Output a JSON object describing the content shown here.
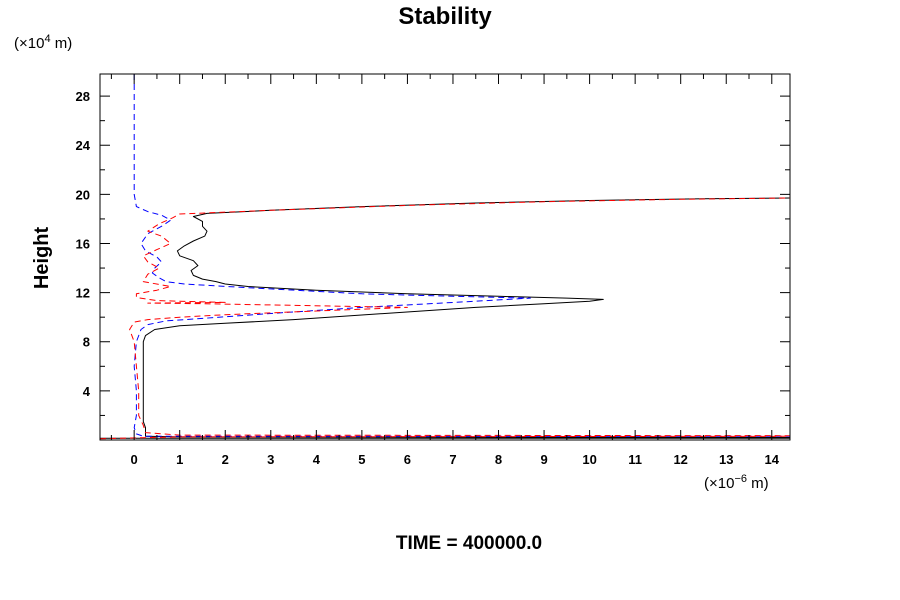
{
  "chart_data": {
    "type": "line",
    "title": "Stability",
    "ylabel": "Height",
    "xunits": {
      "prefix": "(×10",
      "exp": "−6",
      "suffix": " m)"
    },
    "yunits": {
      "prefix": "(×10",
      "exp": "4",
      "suffix": " m)"
    },
    "footer": "TIME = 400000.0",
    "xlim": [
      -0.75,
      14.4
    ],
    "ylim": [
      0,
      29.8
    ],
    "xticks": [
      "0",
      "1",
      "2",
      "3",
      "4",
      "5",
      "6",
      "7",
      "8",
      "9",
      "10",
      "11",
      "12",
      "13",
      "14"
    ],
    "yticks": [
      "4",
      "8",
      "12",
      "16",
      "20",
      "24",
      "28"
    ],
    "series": [
      {
        "color": "#000000",
        "dash": "",
        "points": [
          [
            -0.8,
            0.15
          ],
          [
            14.4,
            0.15
          ],
          [
            14.4,
            0.2
          ],
          [
            1.0,
            0.25
          ],
          [
            0.25,
            0.3
          ],
          [
            0.25,
            1.0
          ],
          [
            0.2,
            1.5
          ],
          [
            0.2,
            4.0
          ],
          [
            0.2,
            8.0
          ],
          [
            0.25,
            8.5
          ],
          [
            0.45,
            9.0
          ],
          [
            1.0,
            9.3
          ],
          [
            2.0,
            9.5
          ],
          [
            3.5,
            9.8
          ],
          [
            5.5,
            10.3
          ],
          [
            7.5,
            10.8
          ],
          [
            9.0,
            11.1
          ],
          [
            10.0,
            11.3
          ],
          [
            10.3,
            11.45
          ],
          [
            9.5,
            11.55
          ],
          [
            8.0,
            11.7
          ],
          [
            6.0,
            11.9
          ],
          [
            4.0,
            12.2
          ],
          [
            2.5,
            12.5
          ],
          [
            2.0,
            12.7
          ],
          [
            1.8,
            12.9
          ],
          [
            1.5,
            13.1
          ],
          [
            1.3,
            13.4
          ],
          [
            1.25,
            13.8
          ],
          [
            1.4,
            14.2
          ],
          [
            1.3,
            14.6
          ],
          [
            1.0,
            15.0
          ],
          [
            0.95,
            15.4
          ],
          [
            1.1,
            15.8
          ],
          [
            1.3,
            16.2
          ],
          [
            1.55,
            16.6
          ],
          [
            1.6,
            17.0
          ],
          [
            1.5,
            17.4
          ],
          [
            1.5,
            17.8
          ],
          [
            1.3,
            18.2
          ],
          [
            1.6,
            18.45
          ],
          [
            3.0,
            18.7
          ],
          [
            5.0,
            19.0
          ],
          [
            7.5,
            19.3
          ],
          [
            10.0,
            19.5
          ],
          [
            12.5,
            19.65
          ],
          [
            14.4,
            19.7
          ]
        ]
      },
      {
        "color": "#0000ff",
        "dash": "6,4",
        "points": [
          [
            0.0,
            29.8
          ],
          [
            0.0,
            28.0
          ],
          [
            0.0,
            24.0
          ],
          [
            0.0,
            20.0
          ],
          [
            0.05,
            19.0
          ],
          [
            0.3,
            18.6
          ],
          [
            0.6,
            18.3
          ],
          [
            0.8,
            17.9
          ],
          [
            0.6,
            17.4
          ],
          [
            0.3,
            16.8
          ],
          [
            0.15,
            16.0
          ],
          [
            0.25,
            15.4
          ],
          [
            0.5,
            14.9
          ],
          [
            0.6,
            14.5
          ],
          [
            0.45,
            14.0
          ],
          [
            0.4,
            13.6
          ],
          [
            0.55,
            13.2
          ],
          [
            0.7,
            12.9
          ],
          [
            1.1,
            12.7
          ],
          [
            2.5,
            12.4
          ],
          [
            5.0,
            11.9
          ],
          [
            7.0,
            11.7
          ],
          [
            8.7,
            11.55
          ],
          [
            7.5,
            11.3
          ],
          [
            5.0,
            10.8
          ],
          [
            3.0,
            10.3
          ],
          [
            1.5,
            9.9
          ],
          [
            0.7,
            9.7
          ],
          [
            0.3,
            9.4
          ],
          [
            0.15,
            9.0
          ],
          [
            0.05,
            8.0
          ],
          [
            0.0,
            6.0
          ],
          [
            0.05,
            4.0
          ],
          [
            0.05,
            2.0
          ],
          [
            0.0,
            1.0
          ],
          [
            0.05,
            0.5
          ],
          [
            0.2,
            0.3
          ],
          [
            14.4,
            0.3
          ]
        ]
      },
      {
        "color": "#ff0000",
        "dash": "6,4",
        "points": [
          [
            -0.75,
            0.1
          ],
          [
            -0.3,
            0.15
          ],
          [
            1.0,
            0.25
          ],
          [
            14.4,
            0.3
          ],
          [
            14.4,
            0.35
          ],
          [
            1.0,
            0.4
          ],
          [
            0.25,
            0.6
          ],
          [
            0.2,
            1.2
          ],
          [
            0.1,
            2.0
          ],
          [
            0.1,
            4.0
          ],
          [
            0.05,
            6.0
          ],
          [
            0.0,
            8.0
          ],
          [
            -0.1,
            9.0
          ],
          [
            0.0,
            9.6
          ],
          [
            0.3,
            9.8
          ],
          [
            1.0,
            10.0
          ],
          [
            2.0,
            10.2
          ],
          [
            4.0,
            10.5
          ],
          [
            6.0,
            10.8
          ],
          [
            1.5,
            11.1
          ],
          [
            0.3,
            11.15
          ],
          [
            2.0,
            11.2
          ],
          [
            0.5,
            11.35
          ],
          [
            0.05,
            11.6
          ],
          [
            0.05,
            11.9
          ],
          [
            0.5,
            12.2
          ],
          [
            0.8,
            12.5
          ],
          [
            0.2,
            12.9
          ],
          [
            0.3,
            13.5
          ],
          [
            0.55,
            14.0
          ],
          [
            0.3,
            14.5
          ],
          [
            0.2,
            15.0
          ],
          [
            0.5,
            15.5
          ],
          [
            0.8,
            16.0
          ],
          [
            0.6,
            16.6
          ],
          [
            0.3,
            17.0
          ],
          [
            0.55,
            17.6
          ],
          [
            0.85,
            18.1
          ],
          [
            1.0,
            18.4
          ],
          [
            3.0,
            18.7
          ],
          [
            6.0,
            19.1
          ],
          [
            9.0,
            19.4
          ],
          [
            12.0,
            19.6
          ],
          [
            14.4,
            19.7
          ]
        ]
      }
    ]
  }
}
